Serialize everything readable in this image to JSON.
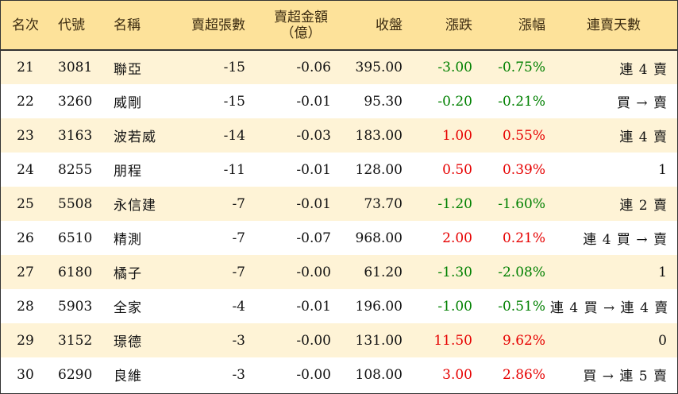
{
  "header": {
    "rank": "名次",
    "code": "代號",
    "name": "名稱",
    "net_lots": "賣超張數",
    "net_amount_line1": "賣超金額",
    "net_amount_line2": "（億）",
    "close": "收盤",
    "change": "漲跌",
    "change_pct": "漲幅",
    "streak": "連賣天數"
  },
  "colors": {
    "header_bg": "#fde29a",
    "odd_row_bg": "#fef3d6",
    "up": "#e60000",
    "down": "#008000"
  },
  "rows": [
    {
      "rank": "21",
      "code": "3081",
      "name": "聯亞",
      "net_lots": "-15",
      "net_amount": "-0.06",
      "close": "395.00",
      "change": "-3.00",
      "change_pct": "-0.75%",
      "streak": "連 4 賣",
      "dir": "down"
    },
    {
      "rank": "22",
      "code": "3260",
      "name": "威剛",
      "net_lots": "-15",
      "net_amount": "-0.01",
      "close": "95.30",
      "change": "-0.20",
      "change_pct": "-0.21%",
      "streak": "買 → 賣",
      "dir": "down"
    },
    {
      "rank": "23",
      "code": "3163",
      "name": "波若威",
      "net_lots": "-14",
      "net_amount": "-0.03",
      "close": "183.00",
      "change": "1.00",
      "change_pct": "0.55%",
      "streak": "連 4 賣",
      "dir": "up"
    },
    {
      "rank": "24",
      "code": "8255",
      "name": "朋程",
      "net_lots": "-11",
      "net_amount": "-0.01",
      "close": "128.00",
      "change": "0.50",
      "change_pct": "0.39%",
      "streak": "1",
      "dir": "up"
    },
    {
      "rank": "25",
      "code": "5508",
      "name": "永信建",
      "net_lots": "-7",
      "net_amount": "-0.01",
      "close": "73.70",
      "change": "-1.20",
      "change_pct": "-1.60%",
      "streak": "連 2 賣",
      "dir": "down"
    },
    {
      "rank": "26",
      "code": "6510",
      "name": "精測",
      "net_lots": "-7",
      "net_amount": "-0.07",
      "close": "968.00",
      "change": "2.00",
      "change_pct": "0.21%",
      "streak": "連 4 買 → 賣",
      "dir": "up"
    },
    {
      "rank": "27",
      "code": "6180",
      "name": "橘子",
      "net_lots": "-7",
      "net_amount": "-0.00",
      "close": "61.20",
      "change": "-1.30",
      "change_pct": "-2.08%",
      "streak": "1",
      "dir": "down"
    },
    {
      "rank": "28",
      "code": "5903",
      "name": "全家",
      "net_lots": "-4",
      "net_amount": "-0.01",
      "close": "196.00",
      "change": "-1.00",
      "change_pct": "-0.51%",
      "streak": "連 4 買 → 連 4 賣",
      "dir": "down"
    },
    {
      "rank": "29",
      "code": "3152",
      "name": "璟德",
      "net_lots": "-3",
      "net_amount": "-0.00",
      "close": "131.00",
      "change": "11.50",
      "change_pct": "9.62%",
      "streak": "0",
      "dir": "up"
    },
    {
      "rank": "30",
      "code": "6290",
      "name": "良維",
      "net_lots": "-3",
      "net_amount": "-0.00",
      "close": "108.00",
      "change": "3.00",
      "change_pct": "2.86%",
      "streak": "買 → 連 5 賣",
      "dir": "up"
    }
  ]
}
